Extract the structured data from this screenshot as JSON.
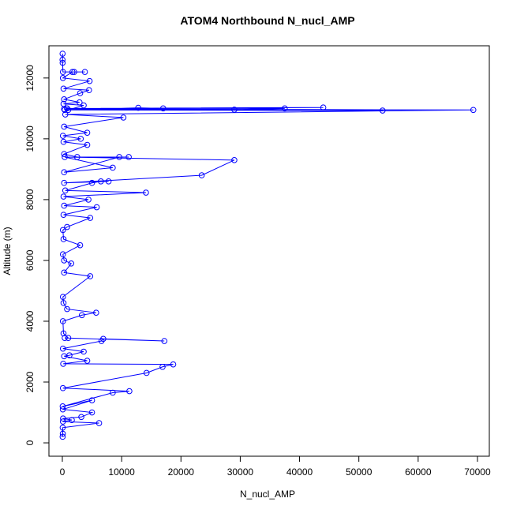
{
  "chart_data": {
    "type": "line",
    "title": "ATOM4 Northbound N_nucl_AMP",
    "xlabel": "N_nucl_AMP",
    "ylabel": "Altitude (m)",
    "color": "#0000ff",
    "xlim": [
      -2260,
      72000
    ],
    "ylim": [
      -440,
      13060
    ],
    "xticks": [
      0,
      10000,
      20000,
      30000,
      40000,
      50000,
      60000,
      70000
    ],
    "yticks": [
      0,
      2000,
      4000,
      6000,
      8000,
      10000,
      12000
    ],
    "x": [
      50,
      80,
      60,
      6200,
      100,
      1600,
      120,
      3200,
      5000,
      80,
      5000,
      60,
      8500,
      11300,
      100,
      14200,
      16900,
      18700,
      150,
      4200,
      300,
      1200,
      3600,
      100,
      6600,
      6900,
      17200,
      400,
      1000,
      200,
      100,
      3300,
      5700,
      800,
      200,
      100,
      4700,
      300,
      1500,
      300,
      100,
      3000,
      200,
      100,
      800,
      4700,
      200,
      5800,
      300,
      4400,
      200,
      14100,
      500,
      5000,
      6500,
      7800,
      300,
      23500,
      29000,
      400,
      8500,
      300,
      9600,
      11200,
      2500,
      300,
      4200,
      200,
      3100,
      100,
      4200,
      300,
      10300,
      500,
      69300,
      300,
      54000,
      400,
      29000,
      37500,
      800,
      44000,
      17000,
      12800,
      1000,
      3600,
      200,
      2900,
      300,
      3000,
      4500,
      200,
      4600,
      100,
      1700,
      2000,
      3800,
      100,
      50,
      30,
      40
    ],
    "values": [
      200,
      300,
      500,
      650,
      700,
      750,
      800,
      850,
      1000,
      1100,
      1400,
      1200,
      1650,
      1700,
      1800,
      2300,
      2500,
      2580,
      2600,
      2700,
      2850,
      2880,
      3000,
      3100,
      3350,
      3420,
      3350,
      3450,
      3450,
      3600,
      4000,
      4200,
      4280,
      4400,
      4600,
      4800,
      5480,
      5600,
      5900,
      6000,
      6200,
      6500,
      6700,
      7000,
      7100,
      7400,
      7500,
      7750,
      7800,
      8000,
      8100,
      8230,
      8300,
      8550,
      8600,
      8600,
      8550,
      8800,
      9300,
      9400,
      9050,
      8900,
      9400,
      9400,
      9400,
      9500,
      9800,
      9900,
      10000,
      10100,
      10200,
      10400,
      10700,
      10800,
      10950,
      10980,
      10930,
      10950,
      10960,
      11000,
      11000,
      11030,
      11000,
      11020,
      10950,
      11100,
      11150,
      11200,
      11300,
      11500,
      11600,
      11650,
      11900,
      12000,
      12200,
      12200,
      12200,
      12200,
      12500,
      12600,
      12800
    ]
  }
}
